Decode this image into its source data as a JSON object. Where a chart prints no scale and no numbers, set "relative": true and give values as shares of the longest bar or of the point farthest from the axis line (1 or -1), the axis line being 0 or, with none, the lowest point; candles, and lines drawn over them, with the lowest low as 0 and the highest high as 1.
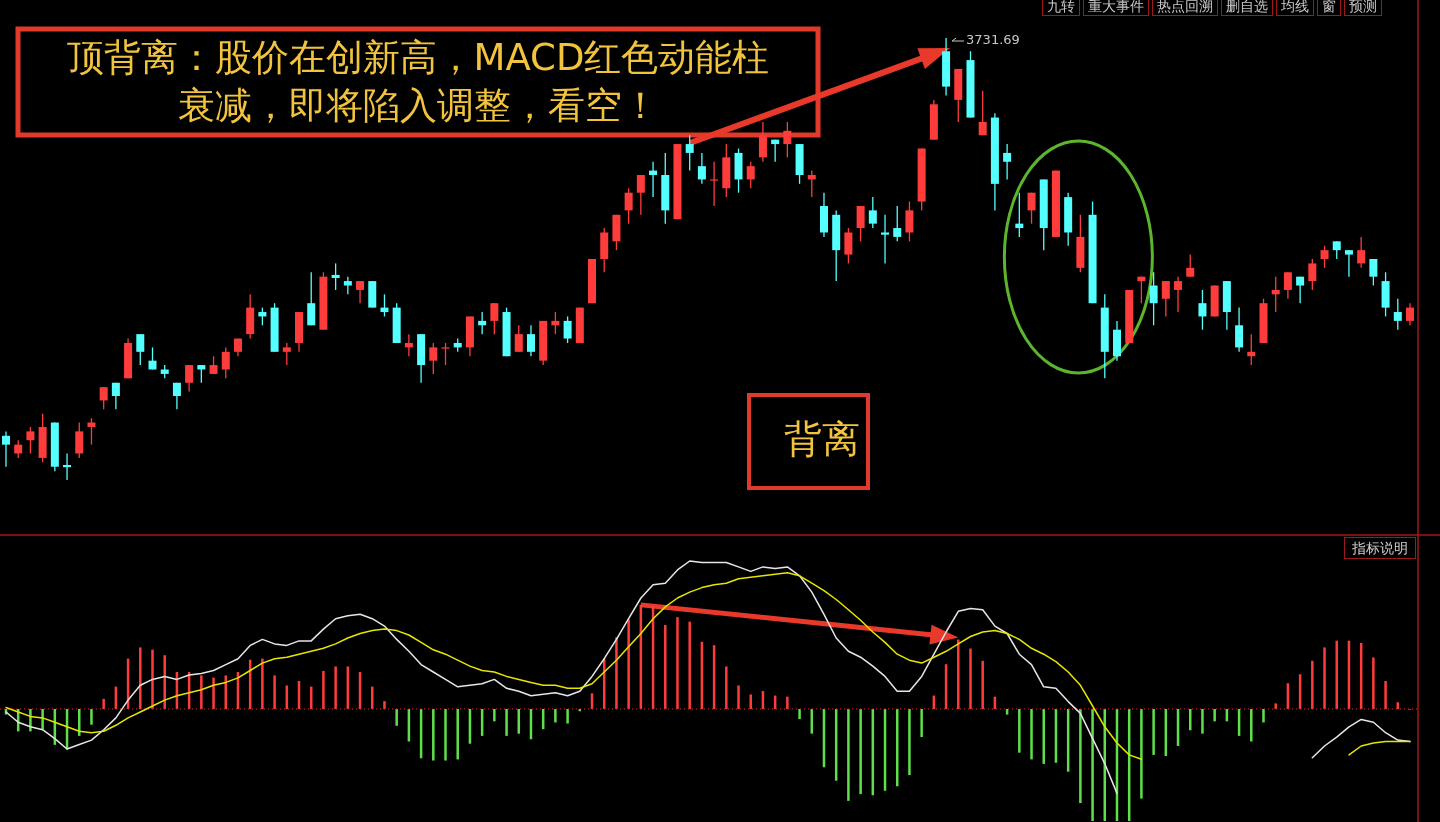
{
  "chart_data": [
    {
      "type": "candlestick",
      "relative": true,
      "categories": [
        null,
        null,
        null,
        null,
        null,
        null,
        null,
        null,
        null,
        null,
        null,
        null,
        null,
        null,
        null,
        null,
        null,
        null,
        null,
        null,
        null,
        null,
        null,
        null,
        null,
        null,
        null,
        null,
        null,
        null,
        null,
        null,
        null,
        null,
        null,
        null,
        null,
        null,
        null,
        null,
        null,
        null,
        null,
        null,
        null,
        null,
        null,
        null,
        null,
        null,
        null,
        null,
        null,
        null,
        null,
        null,
        null,
        null,
        null,
        null,
        null,
        null,
        null,
        null,
        null,
        null,
        null,
        null,
        null,
        null,
        null,
        null,
        null,
        null,
        null,
        null,
        null,
        null,
        null,
        null,
        null,
        null,
        null,
        null,
        null,
        null,
        null,
        null,
        null,
        null,
        null,
        null,
        null,
        null,
        null,
        null,
        null,
        null,
        null,
        null,
        null,
        null,
        null,
        null,
        null,
        null,
        null,
        null,
        null,
        null,
        null,
        null,
        null,
        null,
        null,
        null
      ],
      "ohlc": [
        [
          0.1,
          0.11,
          0.03,
          0.08
        ],
        [
          0.06,
          0.09,
          0.05,
          0.08
        ],
        [
          0.09,
          0.12,
          0.06,
          0.11
        ],
        [
          0.05,
          0.15,
          0.04,
          0.12
        ],
        [
          0.13,
          0.13,
          0.02,
          0.03
        ],
        [
          0.034,
          0.06,
          0,
          0.029
        ],
        [
          0.06,
          0.13,
          0.05,
          0.11
        ],
        [
          0.12,
          0.14,
          0.08,
          0.13
        ],
        [
          0.18,
          0.21,
          0.16,
          0.21
        ],
        [
          0.22,
          0.22,
          0.16,
          0.19
        ],
        [
          0.23,
          0.32,
          0.23,
          0.31
        ],
        [
          0.33,
          0.33,
          0.26,
          0.29
        ],
        [
          0.27,
          0.3,
          0.25,
          0.25
        ],
        [
          0.25,
          0.26,
          0.23,
          0.24
        ],
        [
          0.22,
          0.22,
          0.16,
          0.19
        ],
        [
          0.22,
          0.26,
          0.2,
          0.26
        ],
        [
          0.26,
          0.26,
          0.22,
          0.25
        ],
        [
          0.24,
          0.28,
          0.24,
          0.26
        ],
        [
          0.25,
          0.3,
          0.23,
          0.29
        ],
        [
          0.29,
          0.32,
          0.28,
          0.32
        ],
        [
          0.33,
          0.42,
          0.32,
          0.39
        ],
        [
          0.38,
          0.39,
          0.35,
          0.37
        ],
        [
          0.39,
          0.4,
          0.29,
          0.29
        ],
        [
          0.29,
          0.31,
          0.26,
          0.3
        ],
        [
          0.31,
          0.38,
          0.29,
          0.38
        ],
        [
          0.4,
          0.47,
          0.35,
          0.35
        ],
        [
          0.34,
          0.47,
          0.34,
          0.46
        ],
        [
          0.464,
          0.49,
          0.43,
          0.457
        ],
        [
          0.45,
          0.46,
          0.42,
          0.44
        ],
        [
          0.43,
          0.45,
          0.4,
          0.45
        ],
        [
          0.45,
          0.45,
          0.39,
          0.39
        ],
        [
          0.39,
          0.42,
          0.37,
          0.38
        ],
        [
          0.39,
          0.4,
          0.31,
          0.31
        ],
        [
          0.3,
          0.33,
          0.28,
          0.31
        ],
        [
          0.33,
          0.33,
          0.22,
          0.26
        ],
        [
          0.27,
          0.31,
          0.24,
          0.3
        ],
        [
          0.3,
          0.31,
          0.26,
          0.3
        ],
        [
          0.31,
          0.32,
          0.29,
          0.3
        ],
        [
          0.3,
          0.37,
          0.28,
          0.37
        ],
        [
          0.36,
          0.38,
          0.33,
          0.35
        ],
        [
          0.36,
          0.4,
          0.33,
          0.4
        ],
        [
          0.38,
          0.39,
          0.28,
          0.28
        ],
        [
          0.29,
          0.35,
          0.29,
          0.33
        ],
        [
          0.33,
          0.35,
          0.28,
          0.29
        ],
        [
          0.27,
          0.36,
          0.26,
          0.36
        ],
        [
          0.35,
          0.38,
          0.33,
          0.36
        ],
        [
          0.36,
          0.37,
          0.31,
          0.32
        ],
        [
          0.31,
          0.39,
          0.31,
          0.39
        ],
        [
          0.4,
          0.5,
          0.4,
          0.5
        ],
        [
          0.5,
          0.57,
          0.47,
          0.56
        ],
        [
          0.54,
          0.6,
          0.52,
          0.6
        ],
        [
          0.61,
          0.66,
          0.58,
          0.65
        ],
        [
          0.65,
          0.69,
          0.6,
          0.69
        ],
        [
          0.7,
          0.72,
          0.64,
          0.69
        ],
        [
          0.69,
          0.74,
          0.58,
          0.61
        ],
        [
          0.59,
          0.76,
          0.59,
          0.76
        ],
        [
          0.76,
          0.78,
          0.7,
          0.74
        ],
        [
          0.71,
          0.74,
          0.67,
          0.68
        ],
        [
          0.68,
          0.72,
          0.62,
          0.68
        ],
        [
          0.66,
          0.76,
          0.64,
          0.73
        ],
        [
          0.74,
          0.75,
          0.65,
          0.68
        ],
        [
          0.68,
          0.72,
          0.66,
          0.71
        ],
        [
          0.73,
          0.81,
          0.72,
          0.78
        ],
        [
          0.77,
          0.77,
          0.72,
          0.76
        ],
        [
          0.76,
          0.81,
          0.73,
          0.79
        ],
        [
          0.76,
          0.76,
          0.67,
          0.69
        ],
        [
          0.68,
          0.7,
          0.64,
          0.69
        ],
        [
          0.62,
          0.65,
          0.55,
          0.56
        ],
        [
          0.6,
          0.61,
          0.45,
          0.52
        ],
        [
          0.51,
          0.57,
          0.49,
          0.56
        ],
        [
          0.57,
          0.62,
          0.54,
          0.62
        ],
        [
          0.61,
          0.64,
          0.57,
          0.58
        ],
        [
          0.56,
          0.6,
          0.49,
          0.555
        ],
        [
          0.57,
          0.62,
          0.54,
          0.55
        ],
        [
          0.56,
          0.63,
          0.54,
          0.61
        ],
        [
          0.63,
          0.75,
          0.61,
          0.75
        ],
        [
          0.77,
          0.86,
          0.77,
          0.85
        ],
        [
          0.97,
          1,
          0.87,
          0.89
        ],
        [
          0.86,
          0.93,
          0.81,
          0.93
        ],
        [
          0.95,
          0.97,
          0.82,
          0.82
        ],
        [
          0.78,
          0.88,
          0.78,
          0.81
        ],
        [
          0.82,
          0.83,
          0.61,
          0.67
        ],
        [
          0.74,
          0.76,
          0.68,
          0.72
        ],
        [
          0.58,
          0.65,
          0.55,
          0.57
        ],
        [
          0.61,
          0.65,
          0.58,
          0.65
        ],
        [
          0.68,
          0.68,
          0.52,
          0.57
        ],
        [
          0.55,
          0.7,
          0.55,
          0.7
        ],
        [
          0.64,
          0.65,
          0.53,
          0.56
        ],
        [
          0.48,
          0.6,
          0.47,
          0.55
        ],
        [
          0.6,
          0.63,
          0.4,
          0.4
        ],
        [
          0.39,
          0.42,
          0.23,
          0.29
        ],
        [
          0.34,
          0.36,
          0.27,
          0.28
        ],
        [
          0.31,
          0.43,
          0.31,
          0.43
        ],
        [
          0.45,
          0.46,
          0.4,
          0.46
        ],
        [
          0.44,
          0.47,
          0.35,
          0.4
        ],
        [
          0.41,
          0.45,
          0.37,
          0.45
        ],
        [
          0.43,
          0.46,
          0.38,
          0.45
        ],
        [
          0.46,
          0.51,
          0.46,
          0.48
        ],
        [
          0.4,
          0.43,
          0.34,
          0.37
        ],
        [
          0.37,
          0.44,
          0.37,
          0.44
        ],
        [
          0.45,
          0.45,
          0.34,
          0.38
        ],
        [
          0.35,
          0.39,
          0.29,
          0.3
        ],
        [
          0.28,
          0.33,
          0.26,
          0.29
        ],
        [
          0.31,
          0.41,
          0.31,
          0.4
        ],
        [
          0.42,
          0.46,
          0.38,
          0.43
        ],
        [
          0.43,
          0.47,
          0.41,
          0.47
        ],
        [
          0.46,
          0.46,
          0.4,
          0.44
        ],
        [
          0.45,
          0.5,
          0.43,
          0.49
        ],
        [
          0.5,
          0.53,
          0.48,
          0.52
        ],
        [
          0.54,
          0.54,
          0.5,
          0.52
        ],
        [
          0.52,
          0.52,
          0.46,
          0.51
        ],
        [
          0.49,
          0.55,
          0.48,
          0.52
        ],
        [
          0.5,
          0.5,
          0.44,
          0.46
        ],
        [
          0.45,
          0.47,
          0.37,
          0.39
        ],
        [
          0.38,
          0.41,
          0.34,
          0.36
        ],
        [
          0.36,
          0.4,
          0.35,
          0.39
        ]
      ],
      "annotations": [
        {
          "text": "顶背离：股价在创新高，MACD红色动能柱衰减，即将陷入调整，看空！"
        },
        {
          "text": "3731.69"
        },
        {
          "text": "背离"
        },
        {
          "text": "九转"
        },
        {
          "text": "重大事件"
        },
        {
          "text": "热点回溯"
        },
        {
          "text": "删自选"
        },
        {
          "text": "均线"
        },
        {
          "text": "窗"
        },
        {
          "text": "预测"
        }
      ]
    },
    {
      "type": "bar",
      "relative": true,
      "ref_lines": [
        {
          "axis": "y",
          "value": 0,
          "color": "#a01818",
          "line_style": "dotted"
        }
      ],
      "categories": [
        null,
        null,
        null,
        null,
        null,
        null,
        null,
        null,
        null,
        null,
        null,
        null,
        null,
        null,
        null,
        null,
        null,
        null,
        null,
        null,
        null,
        null,
        null,
        null,
        null,
        null,
        null,
        null,
        null,
        null,
        null,
        null,
        null,
        null,
        null,
        null,
        null,
        null,
        null,
        null,
        null,
        null,
        null,
        null,
        null,
        null,
        null,
        null,
        null,
        null,
        null,
        null,
        null,
        null,
        null,
        null,
        null,
        null,
        null,
        null,
        null,
        null,
        null,
        null,
        null,
        null,
        null,
        null,
        null,
        null,
        null,
        null,
        null,
        null,
        null,
        null,
        null,
        null,
        null,
        null,
        null,
        null,
        null,
        null,
        null,
        null,
        null,
        null,
        null,
        null,
        null,
        null,
        null,
        null,
        null,
        null,
        null,
        null,
        null,
        null,
        null,
        null,
        null,
        null,
        null,
        null,
        null,
        null,
        null,
        null,
        null,
        null,
        null,
        null,
        null,
        null
      ],
      "values": [
        -0.05,
        -0.2,
        -0.2,
        -0.18,
        -0.32,
        -0.36,
        -0.24,
        -0.14,
        0.09,
        0.2,
        0.45,
        0.55,
        0.53,
        0.48,
        0.33,
        0.33,
        0.3,
        0.28,
        0.3,
        0.33,
        0.44,
        0.45,
        0.3,
        0.21,
        0.25,
        0.2,
        0.34,
        0.38,
        0.38,
        0.33,
        0.2,
        0.07,
        -0.15,
        -0.29,
        -0.44,
        -0.46,
        -0.46,
        -0.45,
        -0.31,
        -0.24,
        -0.11,
        -0.24,
        -0.22,
        -0.27,
        -0.18,
        -0.12,
        -0.13,
        -0.02,
        0.14,
        0.45,
        0.64,
        0.8,
        0.93,
        0.92,
        0.75,
        0.82,
        0.78,
        0.6,
        0.57,
        0.38,
        0.21,
        0.13,
        0.16,
        0.12,
        0.11,
        -0.09,
        -0.22,
        -0.52,
        -0.64,
        -0.82,
        -0.76,
        -0.77,
        -0.73,
        -0.69,
        -0.59,
        -0.25,
        0.12,
        0.4,
        0.62,
        0.54,
        0.43,
        0.11,
        -0.05,
        -0.39,
        -0.45,
        -0.49,
        -0.48,
        -0.56,
        -0.84,
        -1,
        -1,
        -1,
        -1,
        -0.8,
        -0.41,
        -0.42,
        -0.33,
        -0.19,
        -0.22,
        -0.11,
        -0.11,
        -0.24,
        -0.29,
        -0.12,
        0.05,
        0.23,
        0.31,
        0.43,
        0.55,
        0.61,
        0.61,
        0.59,
        0.46,
        0.25,
        0.06,
        0
      ],
      "colors": [
        "#5ee04a",
        "#5ee04a",
        "#5ee04a",
        "#5ee04a",
        "#5ee04a",
        "#5ee04a",
        "#5ee04a",
        "#5ee04a",
        "#ff3c3c",
        "#ff3c3c",
        "#ff3c3c",
        "#ff3c3c",
        "#ff3c3c",
        "#ff3c3c",
        "#ff3c3c",
        "#ff3c3c",
        "#ff3c3c",
        "#ff3c3c",
        "#ff3c3c",
        "#ff3c3c",
        "#ff3c3c",
        "#ff3c3c",
        "#ff3c3c",
        "#ff3c3c",
        "#ff3c3c",
        "#ff3c3c",
        "#ff3c3c",
        "#ff3c3c",
        "#ff3c3c",
        "#ff3c3c",
        "#ff3c3c",
        "#ff3c3c",
        "#5ee04a",
        "#5ee04a",
        "#5ee04a",
        "#5ee04a",
        "#5ee04a",
        "#5ee04a",
        "#5ee04a",
        "#5ee04a",
        "#5ee04a",
        "#5ee04a",
        "#5ee04a",
        "#5ee04a",
        "#5ee04a",
        "#5ee04a",
        "#5ee04a",
        "#5ee04a",
        "#ff3c3c",
        "#ff3c3c",
        "#ff3c3c",
        "#ff3c3c",
        "#ff3c3c",
        "#ff3c3c",
        "#ff3c3c",
        "#ff3c3c",
        "#ff3c3c",
        "#ff3c3c",
        "#ff3c3c",
        "#ff3c3c",
        "#ff3c3c",
        "#ff3c3c",
        "#ff3c3c",
        "#ff3c3c",
        "#ff3c3c",
        "#5ee04a",
        "#5ee04a",
        "#5ee04a",
        "#5ee04a",
        "#5ee04a",
        "#5ee04a",
        "#5ee04a",
        "#5ee04a",
        "#5ee04a",
        "#5ee04a",
        "#5ee04a",
        "#ff3c3c",
        "#ff3c3c",
        "#ff3c3c",
        "#ff3c3c",
        "#ff3c3c",
        "#ff3c3c",
        "#5ee04a",
        "#5ee04a",
        "#5ee04a",
        "#5ee04a",
        "#5ee04a",
        "#5ee04a",
        "#5ee04a",
        "#5ee04a",
        "#5ee04a",
        "#5ee04a",
        "#5ee04a",
        "#5ee04a",
        "#5ee04a",
        "#5ee04a",
        "#5ee04a",
        "#5ee04a",
        "#5ee04a",
        "#5ee04a",
        "#5ee04a",
        "#5ee04a",
        "#5ee04a",
        "#5ee04a",
        "#ff3c3c",
        "#ff3c3c",
        "#ff3c3c",
        "#ff3c3c",
        "#ff3c3c",
        "#ff3c3c",
        "#ff3c3c",
        "#ff3c3c",
        "#ff3c3c",
        "#ff3c3c",
        "#ff3c3c",
        "#5ee04a"
      ],
      "annotations": [
        {
          "text": "指标说明"
        }
      ]
    },
    {
      "type": "line",
      "relative": true,
      "ref_lines": [
        {
          "axis": "y",
          "value": 0,
          "color": "#a01818",
          "line_style": "dotted"
        }
      ],
      "categories": [
        null,
        null,
        null,
        null,
        null,
        null,
        null,
        null,
        null,
        null,
        null,
        null,
        null,
        null,
        null,
        null,
        null,
        null,
        null,
        null,
        null,
        null,
        null,
        null,
        null,
        null,
        null,
        null,
        null,
        null,
        null,
        null,
        null,
        null,
        null,
        null,
        null,
        null,
        null,
        null,
        null,
        null,
        null,
        null,
        null,
        null,
        null,
        null,
        null,
        null,
        null,
        null,
        null,
        null,
        null,
        null,
        null,
        null,
        null,
        null,
        null,
        null,
        null,
        null,
        null,
        null,
        null,
        null,
        null,
        null,
        null,
        null,
        null,
        null,
        null,
        null,
        null,
        null,
        null,
        null,
        null,
        null,
        null,
        null,
        null,
        null,
        null,
        null,
        null,
        null,
        null,
        null,
        null,
        null,
        null,
        null,
        null,
        null,
        null,
        null,
        null,
        null,
        null,
        null,
        null,
        null,
        null,
        null,
        null,
        null,
        null,
        null,
        null,
        null,
        null,
        null
      ],
      "series": [
        {
          "color": "#e6e6e6",
          "values": [
            -0.02,
            -0.09,
            -0.12,
            -0.14,
            -0.2,
            -0.27,
            -0.24,
            -0.21,
            -0.14,
            -0.06,
            0.06,
            0.16,
            0.2,
            0.22,
            0.2,
            0.23,
            0.24,
            0.26,
            0.3,
            0.34,
            0.43,
            0.47,
            0.44,
            0.43,
            0.46,
            0.46,
            0.54,
            0.61,
            0.63,
            0.64,
            0.61,
            0.56,
            0.47,
            0.39,
            0.3,
            0.25,
            0.2,
            0.15,
            0.16,
            0.17,
            0.2,
            0.14,
            0.12,
            0.09,
            0.1,
            0.11,
            0.09,
            0.12,
            0.22,
            0.34,
            0.47,
            0.61,
            0.75,
            0.84,
            0.85,
            0.94,
            1,
            0.99,
            0.99,
            0.99,
            0.96,
            0.93,
            0.96,
            0.95,
            0.96,
            0.9,
            0.79,
            0.64,
            0.48,
            0.39,
            0.35,
            0.29,
            0.22,
            0.12,
            0.12,
            0.22,
            0.37,
            0.52,
            0.66,
            0.68,
            0.67,
            0.56,
            0.51,
            0.37,
            0.3,
            0.15,
            0.14,
            0.05,
            -0.03,
            -0.2,
            -0.37,
            -0.57,
            null,
            null,
            null,
            null,
            null,
            null,
            null,
            null,
            null,
            null,
            null,
            null,
            null,
            null,
            null,
            null,
            null,
            null,
            null,
            null,
            null,
            null,
            null,
            null
          ]
        },
        {
          "color": "#e6e6e6",
          "values": [
            null,
            null,
            null,
            null,
            null,
            null,
            null,
            null,
            null,
            null,
            null,
            null,
            null,
            null,
            null,
            null,
            null,
            null,
            null,
            null,
            null,
            null,
            null,
            null,
            null,
            null,
            null,
            null,
            null,
            null,
            null,
            null,
            null,
            null,
            null,
            null,
            null,
            null,
            null,
            null,
            null,
            null,
            null,
            null,
            null,
            null,
            null,
            null,
            null,
            null,
            null,
            null,
            null,
            null,
            null,
            null,
            null,
            null,
            null,
            null,
            null,
            null,
            null,
            null,
            null,
            null,
            null,
            null,
            null,
            null,
            null,
            null,
            null,
            null,
            null,
            null,
            null,
            null,
            null,
            null,
            null,
            null,
            null,
            null,
            null,
            null,
            null,
            null,
            null,
            null,
            null,
            null,
            null,
            null,
            null,
            null,
            null,
            null,
            null,
            null,
            null,
            null,
            null,
            null,
            null,
            null,
            null,
            -0.33,
            -0.25,
            -0.19,
            -0.12,
            -0.07,
            -0.09,
            -0.16,
            -0.21,
            -0.22
          ]
        },
        {
          "color": "#e6e600",
          "values": [
            0.01,
            -0.02,
            -0.05,
            -0.06,
            -0.09,
            -0.12,
            -0.15,
            -0.16,
            -0.15,
            -0.11,
            -0.06,
            -0.02,
            0.02,
            0.06,
            0.09,
            0.11,
            0.13,
            0.16,
            0.18,
            0.21,
            0.26,
            0.31,
            0.34,
            0.35,
            0.37,
            0.39,
            0.41,
            0.44,
            0.48,
            0.51,
            0.53,
            0.54,
            0.53,
            0.5,
            0.45,
            0.4,
            0.37,
            0.33,
            0.29,
            0.26,
            0.25,
            0.22,
            0.2,
            0.18,
            0.16,
            0.16,
            0.14,
            0.14,
            0.17,
            0.25,
            0.33,
            0.42,
            0.51,
            0.61,
            0.69,
            0.75,
            0.79,
            0.82,
            0.84,
            0.85,
            0.88,
            0.89,
            0.9,
            0.91,
            0.92,
            0.9,
            0.85,
            0.8,
            0.74,
            0.67,
            0.6,
            0.52,
            0.45,
            0.37,
            0.33,
            0.31,
            0.35,
            0.39,
            0.44,
            0.49,
            0.52,
            0.53,
            0.51,
            0.47,
            0.41,
            0.37,
            0.32,
            0.25,
            0.16,
            0.02,
            -0.12,
            -0.23,
            -0.31,
            -0.34,
            null,
            null,
            null,
            null,
            null,
            null,
            null,
            null,
            null,
            null,
            null,
            null,
            null,
            null,
            null,
            null,
            null,
            null,
            null,
            null,
            null,
            null
          ]
        },
        {
          "color": "#e6e600",
          "values": [
            null,
            null,
            null,
            null,
            null,
            null,
            null,
            null,
            null,
            null,
            null,
            null,
            null,
            null,
            null,
            null,
            null,
            null,
            null,
            null,
            null,
            null,
            null,
            null,
            null,
            null,
            null,
            null,
            null,
            null,
            null,
            null,
            null,
            null,
            null,
            null,
            null,
            null,
            null,
            null,
            null,
            null,
            null,
            null,
            null,
            null,
            null,
            null,
            null,
            null,
            null,
            null,
            null,
            null,
            null,
            null,
            null,
            null,
            null,
            null,
            null,
            null,
            null,
            null,
            null,
            null,
            null,
            null,
            null,
            null,
            null,
            null,
            null,
            null,
            null,
            null,
            null,
            null,
            null,
            null,
            null,
            null,
            null,
            null,
            null,
            null,
            null,
            null,
            null,
            null,
            null,
            null,
            null,
            null,
            null,
            null,
            null,
            null,
            null,
            null,
            null,
            null,
            null,
            null,
            null,
            null,
            null,
            null,
            null,
            null,
            -0.31,
            -0.25,
            -0.23,
            -0.22,
            -0.22,
            -0.22
          ]
        }
      ]
    }
  ]
}
